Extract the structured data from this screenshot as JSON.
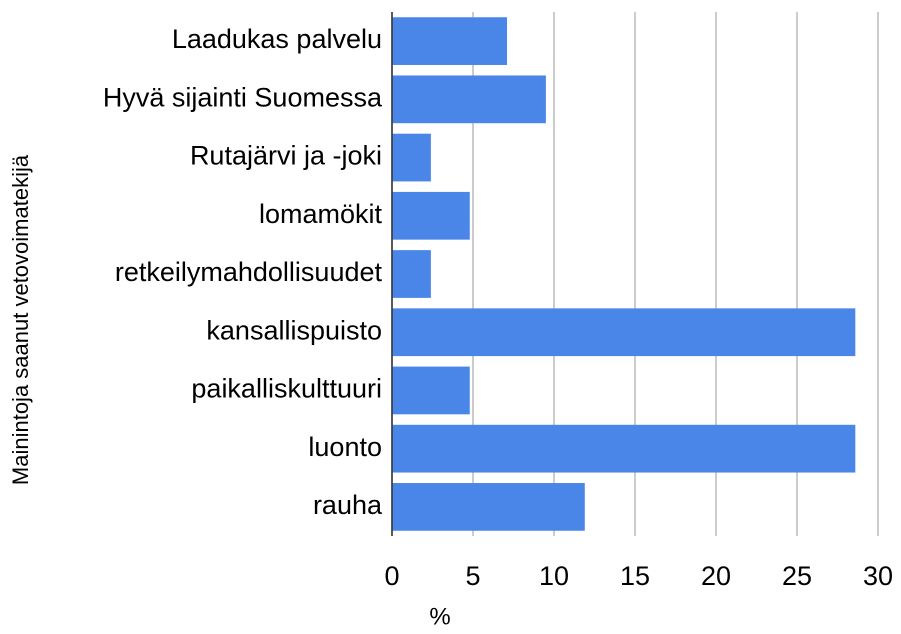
{
  "chart_data": {
    "type": "bar",
    "orientation": "horizontal",
    "y_label": "Mainintoja saanut vetovoimatekijä",
    "x_label": "%",
    "categories": [
      "Laadukas palvelu",
      "Hyvä sijainti Suomessa",
      "Rutajärvi ja -joki",
      "lomamökit",
      "retkeilymahdollisuudet",
      "kansallispuisto",
      "paikalliskulttuuri",
      "luonto",
      "rauha"
    ],
    "values": [
      7.1,
      9.5,
      2.4,
      4.8,
      2.4,
      28.6,
      4.8,
      28.6,
      11.9
    ],
    "color": "#4a86e8",
    "xlim": [
      0,
      30
    ],
    "xticks": [
      0,
      5,
      10,
      15,
      20,
      25,
      30
    ],
    "grid": true
  }
}
